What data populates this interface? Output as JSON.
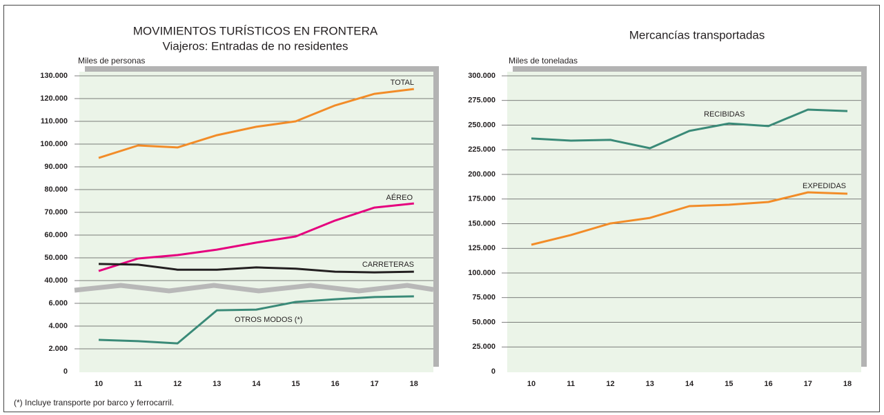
{
  "chart_data": [
    {
      "type": "line",
      "title": "MOVIMIENTOS TURÍSTICOS EN FRONTERA",
      "subtitle": "Viajeros: Entradas de no residentes",
      "y_label": "Miles de personas",
      "categories": [
        "10",
        "11",
        "12",
        "13",
        "14",
        "15",
        "16",
        "17",
        "18"
      ],
      "series": [
        {
          "name": "TOTAL",
          "color": "#f28c28",
          "values": [
            93900,
            99400,
            98500,
            103900,
            107600,
            110000,
            117000,
            122100,
            124200
          ]
        },
        {
          "name": "AÉREO",
          "color": "#e5007e",
          "values": [
            44200,
            49700,
            51200,
            53600,
            56700,
            59400,
            66400,
            72100,
            73900
          ]
        },
        {
          "name": "CARRETERAS",
          "color": "#231f20",
          "values": [
            47300,
            47000,
            44800,
            44800,
            45800,
            45200,
            43900,
            43600,
            43900
          ]
        },
        {
          "name": "OTROS MODOS (*)",
          "color": "#3a8a78",
          "values": [
            2790,
            2670,
            2480,
            5390,
            5450,
            6120,
            6360,
            6550,
            6610
          ]
        }
      ],
      "ylim": [
        0,
        130000
      ],
      "y_break": [
        7000,
        37000
      ],
      "yticks": [
        0,
        {
          "value": 2000,
          "label": "2.000"
        },
        {
          "value": 4000,
          "label": "4.000"
        },
        {
          "value": 6000,
          "label": "6.000"
        },
        {
          "value": 40000,
          "label": "40.000"
        },
        {
          "value": 50000,
          "label": "50.000"
        },
        {
          "value": 60000,
          "label": "60.000"
        },
        {
          "value": 70000,
          "label": "70.000"
        },
        {
          "value": 80000,
          "label": "80.000"
        },
        {
          "value": 90000,
          "label": "90.000"
        },
        {
          "value": 100000,
          "label": "100.000"
        },
        {
          "value": 110000,
          "label": "110.000"
        },
        {
          "value": 120000,
          "label": "120.000"
        },
        {
          "value": 130000,
          "label": "130.000"
        }
      ],
      "grid": true,
      "note": "(*) Incluye transporte por barco y ferrocarril."
    },
    {
      "type": "line",
      "title": "Mercancías transportadas",
      "y_label": "Miles de toneladas",
      "categories": [
        "10",
        "11",
        "12",
        "13",
        "14",
        "15",
        "16",
        "17",
        "18"
      ],
      "series": [
        {
          "name": "RECIBIDAS",
          "color": "#3a8a78",
          "values": [
            236400,
            234300,
            235000,
            226600,
            244100,
            251700,
            249000,
            265700,
            264300
          ]
        },
        {
          "name": "EXPEDIDAS",
          "color": "#f28c28",
          "values": [
            128700,
            138500,
            150300,
            155900,
            167800,
            169200,
            172000,
            181800,
            180400
          ]
        }
      ],
      "ylim": [
        0,
        300000
      ],
      "yticks": [
        0,
        {
          "value": 25000,
          "label": "25.000"
        },
        {
          "value": 50000,
          "label": "50.000"
        },
        {
          "value": 75000,
          "label": "75.000"
        },
        {
          "value": 100000,
          "label": "100.000"
        },
        {
          "value": 125000,
          "label": "125.000"
        },
        {
          "value": 150000,
          "label": "150.000"
        },
        {
          "value": 175000,
          "label": "175.000"
        },
        {
          "value": 200000,
          "label": "200.000"
        },
        {
          "value": 225000,
          "label": "225.000"
        },
        {
          "value": 250000,
          "label": "250.000"
        },
        {
          "value": 275000,
          "label": "275.000"
        },
        {
          "value": 300000,
          "label": "300.000"
        }
      ],
      "grid": true
    }
  ]
}
